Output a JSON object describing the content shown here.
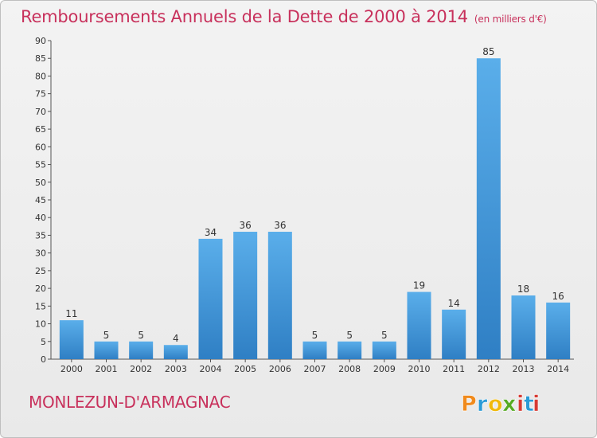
{
  "title": "Remboursements Annuels de la Dette de 2000 à 2014",
  "unit_label": "(en milliers d'€)",
  "commune": "MONLEZUN-D'ARMAGNAC",
  "logo": {
    "text": "Proxiti",
    "letters": [
      "P",
      "r",
      "o",
      "x",
      "i",
      "t",
      "i"
    ],
    "colors": [
      "#f08a1c",
      "#2a9bd6",
      "#f0b90b",
      "#55aa22",
      "#d63a33",
      "#2a9bd6",
      "#d63a33"
    ]
  },
  "colors": {
    "bar": "#3d8fd4",
    "bar_light": "#5aaeea",
    "title": "#c8315c"
  },
  "chart_data": {
    "type": "bar",
    "title": "Remboursements Annuels de la Dette de 2000 à 2014",
    "xlabel": "",
    "ylabel": "",
    "categories": [
      "2000",
      "2001",
      "2002",
      "2003",
      "2004",
      "2005",
      "2006",
      "2007",
      "2008",
      "2009",
      "2010",
      "2011",
      "2012",
      "2013",
      "2014"
    ],
    "values": [
      11,
      5,
      5,
      4,
      34,
      36,
      36,
      5,
      5,
      5,
      19,
      14,
      85,
      18,
      16
    ],
    "ylim": [
      0,
      90
    ],
    "yticks": [
      0,
      5,
      10,
      15,
      20,
      25,
      30,
      35,
      40,
      45,
      50,
      55,
      60,
      65,
      70,
      75,
      80,
      85,
      90
    ],
    "grid": false,
    "legend": "none"
  }
}
